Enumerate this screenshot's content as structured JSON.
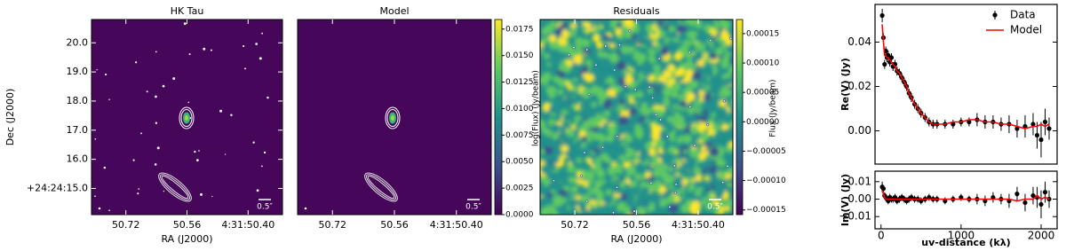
{
  "chart_data": [
    {
      "type": "image",
      "title": "HK Tau",
      "xlabel": "RA (J2000)",
      "ylabel": "Dec (J2000)",
      "scalebar_label": "0.5″",
      "xlim": [
        50.81,
        50.31
      ],
      "xticks": [
        50.72,
        50.56,
        {
          "value": 50.4,
          "label": "4:31:50.40"
        }
      ],
      "ylim": [
        14.1,
        20.8
      ],
      "yticks": [
        {
          "value": 20,
          "label": "20.0"
        },
        {
          "value": 19,
          "label": "19.0"
        },
        {
          "value": 18,
          "label": "18.0"
        },
        {
          "value": 17,
          "label": "17.0"
        },
        {
          "value": 16,
          "label": "16.0"
        },
        {
          "value": 15,
          "label": "+24:24:15.0"
        }
      ]
    },
    {
      "type": "image",
      "title": "Model",
      "scalebar_label": "0.5″",
      "colorbar_label": "log(Flux) (Jy/beam)",
      "xlim": [
        50.81,
        50.31
      ],
      "xticks": [
        50.72,
        50.56,
        {
          "value": 50.4,
          "label": "4:31:50.40"
        }
      ],
      "clim": [
        0,
        0.0184
      ],
      "cticks": [
        {
          "value": 0,
          "label": "0.0000"
        },
        0.0025,
        {
          "value": 0.005,
          "label": "0.0050"
        },
        0.0075,
        {
          "value": 0.01,
          "label": "0.0100"
        },
        0.0125,
        {
          "value": 0.015,
          "label": "0.0150"
        },
        0.0175
      ]
    },
    {
      "type": "image",
      "title": "Residuals",
      "xlabel": "RA (J2000)",
      "scalebar_label": "0.5″",
      "colorbar_label": "Flux (Jy/beam)",
      "xlim": [
        50.81,
        50.31
      ],
      "xticks": [
        50.72,
        50.56,
        {
          "value": 50.4,
          "label": "4:31:50.40"
        }
      ],
      "clim": [
        -0.000158,
        0.000174
      ],
      "cticks": [
        0.00015,
        {
          "value": 0.0001,
          "label": "0.00010"
        },
        5e-05,
        {
          "value": 0,
          "label": "0.00000"
        },
        {
          "value": -5e-05,
          "label": "−0.00005"
        },
        {
          "value": -0.0001,
          "label": "−0.00010"
        },
        {
          "value": -0.00015,
          "label": "−0.00015"
        }
      ]
    },
    {
      "type": "errorbar",
      "ylabel": "Re(V) (Jy)",
      "legend": "upper right",
      "xlim": [
        -75,
        2200
      ],
      "ylim": [
        -0.015,
        0.057
      ],
      "yticks": [
        {
          "value": 0,
          "label": "0.00"
        },
        0.02,
        0.04
      ],
      "x": [
        15,
        30,
        45,
        60,
        75,
        90,
        110,
        130,
        150,
        175,
        200,
        230,
        260,
        290,
        320,
        350,
        380,
        420,
        460,
        500,
        550,
        600,
        650,
        700,
        800,
        900,
        1000,
        1100,
        1200,
        1300,
        1400,
        1500,
        1600,
        1700,
        1800,
        1900,
        1950,
        2000,
        2050,
        2100
      ],
      "series": [
        {
          "name": "Data",
          "color": "#000000",
          "values": [
            0.052,
            0.042,
            0.03,
            0.036,
            0.033,
            0.034,
            0.031,
            0.033,
            0.029,
            0.03,
            0.027,
            0.026,
            0.024,
            0.022,
            0.02,
            0.017,
            0.015,
            0.012,
            0.01,
            0.008,
            0.006,
            0.004,
            0.003,
            0.003,
            0.003,
            0.003,
            0.004,
            0.004,
            0.005,
            0.004,
            0.004,
            0.003,
            0.003,
            0.001,
            0.002,
            0.003,
            -0.002,
            -0.004,
            0.004,
            0.001
          ],
          "errors": [
            0.003,
            0.002,
            0.002,
            0.002,
            0.002,
            0.002,
            0.002,
            0.002,
            0.002,
            0.002,
            0.002,
            0.002,
            0.002,
            0.002,
            0.002,
            0.002,
            0.002,
            0.002,
            0.002,
            0.002,
            0.002,
            0.002,
            0.002,
            0.002,
            0.002,
            0.002,
            0.002,
            0.002,
            0.003,
            0.003,
            0.003,
            0.003,
            0.004,
            0.004,
            0.005,
            0.005,
            0.006,
            0.008,
            0.006,
            0.005
          ]
        },
        {
          "name": "Model",
          "color": "#ff0000",
          "values": [
            0.048,
            0.04,
            0.034,
            0.034,
            0.033,
            0.033,
            0.032,
            0.031,
            0.03,
            0.029,
            0.027,
            0.026,
            0.024,
            0.022,
            0.02,
            0.017,
            0.015,
            0.012,
            0.01,
            0.008,
            0.006,
            0.004,
            0.003,
            0.003,
            0.003,
            0.004,
            0.004,
            0.005,
            0.005,
            0.004,
            0.004,
            0.003,
            0.003,
            0.002,
            0.001,
            0.002,
            0.002,
            0.003,
            0.002,
            0.003
          ]
        }
      ]
    },
    {
      "type": "errorbar",
      "ylabel": "Im(V) (Jy)",
      "xlabel": "uv-distance (kλ)",
      "xlim": [
        -75,
        2200
      ],
      "ylim": [
        -0.017,
        0.016
      ],
      "xticks": [
        0,
        1000,
        2000
      ],
      "yticks": [
        0.01,
        {
          "value": 0,
          "label": "0.00"
        },
        {
          "value": -0.01,
          "label": "−0.01"
        }
      ],
      "x": [
        15,
        30,
        45,
        60,
        75,
        90,
        110,
        130,
        150,
        175,
        200,
        230,
        260,
        290,
        320,
        350,
        380,
        420,
        460,
        500,
        550,
        600,
        650,
        700,
        800,
        900,
        1000,
        1100,
        1200,
        1300,
        1400,
        1500,
        1600,
        1700,
        1800,
        1900,
        1950,
        2000,
        2050,
        2100
      ],
      "series": [
        {
          "name": "Data",
          "color": "#000000",
          "values": [
            0.007,
            0.006,
            0.002,
            0.001,
            0,
            -0.001,
            0.001,
            0,
            0,
            0.001,
            -0.001,
            0,
            0.001,
            0,
            -0.001,
            0,
            0.001,
            0,
            0,
            -0.001,
            0,
            0.001,
            0,
            0,
            -0.001,
            0,
            0.001,
            0,
            0,
            -0.001,
            0.001,
            0,
            -0.001,
            0.003,
            -0.002,
            0.002,
            0.001,
            -0.003,
            0.004,
            0
          ],
          "errors": [
            0.003,
            0.002,
            0.002,
            0.002,
            0.002,
            0.002,
            0.002,
            0.002,
            0.002,
            0.002,
            0.002,
            0.002,
            0.002,
            0.002,
            0.002,
            0.002,
            0.002,
            0.002,
            0.002,
            0.002,
            0.002,
            0.002,
            0.002,
            0.002,
            0.002,
            0.002,
            0.002,
            0.002,
            0.003,
            0.003,
            0.003,
            0.003,
            0.004,
            0.004,
            0.005,
            0.005,
            0.006,
            0.008,
            0.006,
            0.005
          ]
        },
        {
          "name": "Model",
          "color": "#ff0000",
          "values": [
            0.005,
            0.003,
            0.001,
            0,
            0,
            0,
            0,
            0,
            0,
            0,
            0,
            0,
            0,
            0,
            0,
            0,
            0,
            0,
            0,
            0,
            0,
            0,
            0,
            0,
            0,
            0,
            0,
            0,
            0,
            0,
            0,
            0,
            0,
            -0.001,
            0,
            0,
            0.002,
            0,
            0.001,
            0
          ]
        }
      ]
    }
  ]
}
